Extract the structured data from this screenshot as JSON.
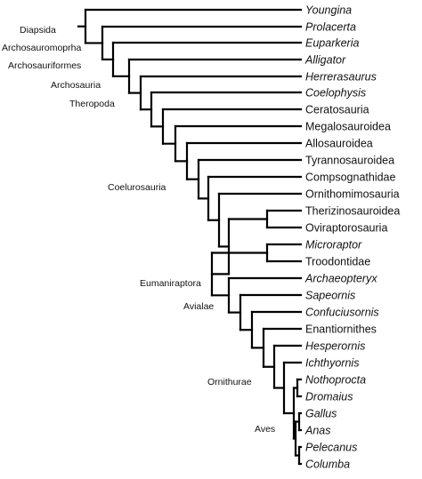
{
  "taxa": [
    {
      "label": "Youngina",
      "italic": true
    },
    {
      "label": "Prolacerta",
      "italic": true
    },
    {
      "label": "Euparkeria",
      "italic": true
    },
    {
      "label": "Alligator",
      "italic": true
    },
    {
      "label": "Herrerasaurus",
      "italic": true
    },
    {
      "label": "Coelophysis",
      "italic": true
    },
    {
      "label": "Ceratosauria",
      "italic": false
    },
    {
      "label": "Megalosauroidea",
      "italic": false
    },
    {
      "label": "Allosauroidea",
      "italic": false
    },
    {
      "label": "Tyrannosauroidea",
      "italic": false
    },
    {
      "label": "Compsognathidae",
      "italic": false
    },
    {
      "label": "Ornithomimosauria",
      "italic": false
    },
    {
      "label": "Therizinosauroidea",
      "italic": false
    },
    {
      "label": "Oviraptorosauria",
      "italic": false
    },
    {
      "label": "Microraptor",
      "italic": true
    },
    {
      "label": "Troodontidae",
      "italic": false
    },
    {
      "label": "Archaeopteryx",
      "italic": true
    },
    {
      "label": "Sapeornis",
      "italic": true
    },
    {
      "label": "Confuciusornis",
      "italic": true
    },
    {
      "label": "Enantiornithes",
      "italic": false
    },
    {
      "label": "Hesperornis",
      "italic": true
    },
    {
      "label": "Ichthyornis",
      "italic": true
    },
    {
      "label": "Nothoprocta",
      "italic": true
    },
    {
      "label": "Dromaius",
      "italic": true
    },
    {
      "label": "Gallus",
      "italic": true
    },
    {
      "label": "Anas",
      "italic": true
    },
    {
      "label": "Pelecanus",
      "italic": true
    },
    {
      "label": "Columba",
      "italic": true
    }
  ],
  "clades": [
    {
      "id": "diapsida",
      "label": "Diapsida"
    },
    {
      "id": "archosauromorpha",
      "label": "Archosauromoprha"
    },
    {
      "id": "archosauriformes",
      "label": "Archosauriformes"
    },
    {
      "id": "archosauria",
      "label": "Archosauria"
    },
    {
      "id": "theropoda",
      "label": "Theropoda"
    },
    {
      "id": "coelurosauria",
      "label": "Coelurosauria"
    },
    {
      "id": "eumaniraptora",
      "label": "Eumaniraptora"
    },
    {
      "id": "avialae",
      "label": "Avialae"
    },
    {
      "id": "ornithurae",
      "label": "Ornithurae"
    },
    {
      "id": "aves",
      "label": "Aves"
    }
  ]
}
